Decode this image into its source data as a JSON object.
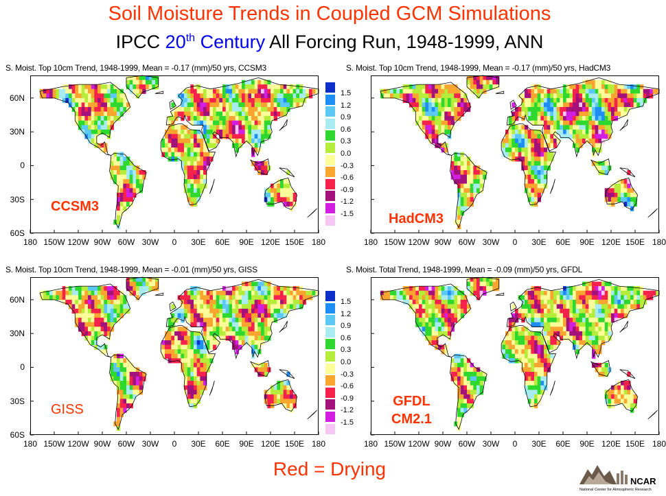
{
  "title": "Soil Moisture Trends in Coupled GCM Simulations",
  "subtitle": {
    "part1": "IPCC ",
    "part2": "20",
    "part2_sup": "th",
    "part3": " Century",
    "part4": " All Forcing Run,  1948-1999, ANN"
  },
  "bottom_caption": "Red = Drying",
  "logo_text": "NCAR",
  "logo_subtext": "National Center for Atmospheric Research",
  "chart_data": [
    {
      "type": "heatmap",
      "title": "S. Moist. Top 10cm Trend, 1948-1999, Mean = -0.17 (mm)/50 yrs, CCSM3",
      "model_label": [
        "CCSM3"
      ],
      "mean": -0.17,
      "units": "(mm)/50 yrs",
      "lat_range": [
        -60,
        80
      ],
      "lon_range": [
        -180,
        180
      ],
      "lat_ticks": [
        "60N",
        "30N",
        "0",
        "30S",
        "60S"
      ],
      "lon_ticks": [
        "180",
        "150W",
        "120W",
        "90W",
        "60W",
        "30W",
        "0",
        "30E",
        "60E",
        "90E",
        "120E",
        "150E",
        "180"
      ]
    },
    {
      "type": "heatmap",
      "title": "S. Moist. Top 10cm Trend, 1948-1999, Mean = -0.17 (mm)/50 yrs, HadCM3",
      "model_label": [
        "HadCM3"
      ],
      "mean": -0.17,
      "units": "(mm)/50 yrs",
      "lat_range": [
        -60,
        80
      ],
      "lon_range": [
        -180,
        180
      ],
      "lat_ticks": [],
      "lon_ticks": [
        "180",
        "150W",
        "120W",
        "90W",
        "60W",
        "30W",
        "0",
        "30E",
        "60E",
        "90E",
        "120E",
        "150E",
        "180"
      ]
    },
    {
      "type": "heatmap",
      "title": "S. Moist. Top 10cm Trend, 1948-1999, Mean = -0.01 (mm)/50 yrs, GISS",
      "model_label": [
        "GISS"
      ],
      "mean": -0.01,
      "units": "(mm)/50 yrs",
      "lat_range": [
        -60,
        80
      ],
      "lon_range": [
        -180,
        180
      ],
      "lat_ticks": [
        "60N",
        "30N",
        "0",
        "30S",
        "60S"
      ],
      "lon_ticks": [
        "180",
        "150W",
        "120W",
        "90W",
        "60W",
        "30W",
        "0",
        "30E",
        "60E",
        "90E",
        "120E",
        "150E",
        "180"
      ]
    },
    {
      "type": "heatmap",
      "title": "S. Moist. Total Trend, 1948-1999, Mean = -0.09 (mm)/50 yrs, GFDL",
      "model_label": [
        "GFDL",
        "CM2.1"
      ],
      "mean": -0.09,
      "units": "(mm)/50 yrs",
      "lat_range": [
        -60,
        80
      ],
      "lon_range": [
        -180,
        180
      ],
      "lat_ticks": [],
      "lon_ticks": [
        "180",
        "150W",
        "120W",
        "90W",
        "60W",
        "30W",
        "0",
        "30E",
        "60E",
        "90E",
        "120E",
        "150E",
        "180"
      ]
    }
  ],
  "legend": {
    "levels": [
      "1.5",
      "1.2",
      "0.9",
      "0.6",
      "0.3",
      "0.0",
      "-0.3",
      "-0.6",
      "-0.9",
      "-1.2",
      "-1.5"
    ],
    "colors": [
      "#0b2fc8",
      "#1e8ef5",
      "#5cc8f6",
      "#a8ecf2",
      "#2fd82f",
      "#b5ed3a",
      "#fdfd9a",
      "#fba531",
      "#f5224b",
      "#a3127a",
      "#d21ee0",
      "#f7c6f5"
    ]
  }
}
